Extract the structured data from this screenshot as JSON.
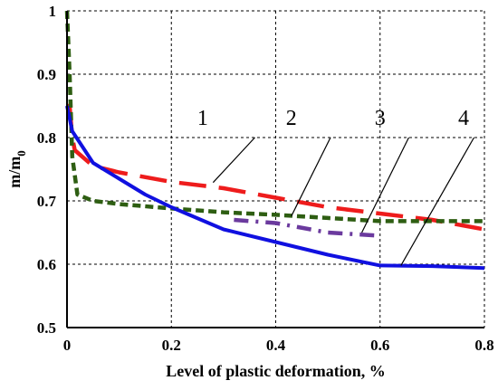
{
  "chart_data": {
    "type": "line",
    "title": "",
    "xlabel": "Level of plastic deformation, %",
    "ylabel": {
      "main": "m/m",
      "sub": "0"
    },
    "xlim": [
      0,
      0.8
    ],
    "ylim": [
      0.5,
      1.0
    ],
    "x_ticks": [
      "0",
      "0.2",
      "0.4",
      "0.6",
      "0.8"
    ],
    "y_ticks": [
      "0.5",
      "0.6",
      "0.7",
      "0.8",
      "0.9",
      "1"
    ],
    "grid": "dashed",
    "series": [
      {
        "name": "1",
        "color": "#ee1c1c",
        "dash": "long-dash",
        "x": [
          0.0,
          0.005,
          0.01,
          0.015,
          0.05,
          0.1,
          0.2,
          0.3,
          0.4,
          0.5,
          0.6,
          0.7,
          0.8
        ],
        "y": [
          0.85,
          0.85,
          0.8,
          0.78,
          0.755,
          0.745,
          0.73,
          0.72,
          0.705,
          0.69,
          0.68,
          0.67,
          0.655
        ]
      },
      {
        "name": "2",
        "color": "#2e5e12",
        "dash": "short-dash",
        "x": [
          0.0,
          0.005,
          0.01,
          0.02,
          0.05,
          0.1,
          0.2,
          0.3,
          0.4,
          0.5,
          0.6,
          0.7,
          0.8
        ],
        "y": [
          1.0,
          0.9,
          0.77,
          0.71,
          0.7,
          0.695,
          0.688,
          0.682,
          0.678,
          0.673,
          0.668,
          0.668,
          0.668
        ]
      },
      {
        "name": "3",
        "color": "#6b3a9e",
        "dash": "dash-dot",
        "x": [
          0.32,
          0.4,
          0.5,
          0.6
        ],
        "y": [
          0.67,
          0.665,
          0.65,
          0.645
        ]
      },
      {
        "name": "4",
        "color": "#1010e0",
        "dash": "solid",
        "x": [
          0.0,
          0.01,
          0.05,
          0.1,
          0.15,
          0.2,
          0.3,
          0.4,
          0.5,
          0.6,
          0.7,
          0.8
        ],
        "y": [
          0.85,
          0.81,
          0.76,
          0.735,
          0.71,
          0.69,
          0.655,
          0.635,
          0.615,
          0.598,
          0.597,
          0.594
        ]
      }
    ],
    "annotations": [
      {
        "text": "1",
        "x": 0.26,
        "y": 0.82,
        "tx": 0.36,
        "ty": 0.8,
        "ax": 0.28,
        "ay": 0.729
      },
      {
        "text": "2",
        "x": 0.43,
        "y": 0.82,
        "tx": 0.505,
        "ty": 0.8,
        "ax": 0.43,
        "ay": 0.676
      },
      {
        "text": "3",
        "x": 0.6,
        "y": 0.82,
        "tx": 0.655,
        "ty": 0.8,
        "ax": 0.565,
        "ay": 0.65
      },
      {
        "text": "4",
        "x": 0.76,
        "y": 0.82,
        "tx": 0.78,
        "ty": 0.8,
        "ax": 0.64,
        "ay": 0.598
      }
    ]
  }
}
